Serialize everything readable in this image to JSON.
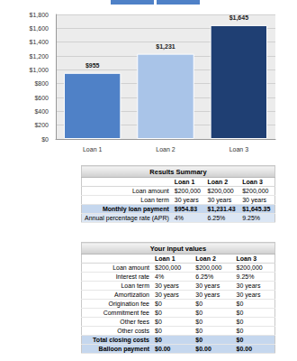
{
  "chart_data": {
    "type": "bar",
    "categories": [
      "Loan 1",
      "Loan 2",
      "Loan 3"
    ],
    "values": [
      955,
      1231,
      1645
    ],
    "value_labels": [
      "$955",
      "$1,231",
      "$1,645"
    ],
    "colors": [
      "#4f81c7",
      "#a9c4e8",
      "#1f3f73"
    ],
    "ylim": [
      0,
      1800
    ],
    "yticks": [
      {
        "value": 0,
        "label": "$0"
      },
      {
        "value": 200,
        "label": "$200"
      },
      {
        "value": 400,
        "label": "$400"
      },
      {
        "value": 600,
        "label": "$600"
      },
      {
        "value": 800,
        "label": "$800"
      },
      {
        "value": 1000,
        "label": "$1,000"
      },
      {
        "value": 1200,
        "label": "$1,200"
      },
      {
        "value": 1400,
        "label": "$1,400"
      },
      {
        "value": 1600,
        "label": "$1,600"
      },
      {
        "value": 1800,
        "label": "$1,800"
      }
    ],
    "grid": true,
    "data_labels": true
  },
  "tables": [
    {
      "title": "Results Summary",
      "header": [
        "Loan 1",
        "Loan 2",
        "Loan 3"
      ],
      "rows": [
        [
          "Loan amount",
          "$200,000",
          "$200,000",
          "$200,000"
        ],
        [
          "Loan term",
          "30 years",
          "30 years",
          "30 years"
        ],
        [
          "Monthly loan payment",
          "$954.83",
          "$1,231.43",
          "$1,645.35"
        ],
        [
          "Annual percentage rate (APR)",
          "4%",
          "6.25%",
          "9.25%"
        ]
      ]
    },
    {
      "title": "Your input values",
      "header": [
        "Loan 1",
        "Loan 2",
        "Loan 3"
      ],
      "rows": [
        [
          "Loan amount",
          "$200,000",
          "$200,000",
          "$200,000"
        ],
        [
          "Interest rate",
          "4%",
          "6.25%",
          "9.25%"
        ],
        [
          "Loan term",
          "30 years",
          "30 years",
          "30 years"
        ],
        [
          "Amortization",
          "30 years",
          "30 years",
          "30 years"
        ],
        [
          "Origination fee",
          "$0",
          "$0",
          "$0"
        ],
        [
          "Commitment fee",
          "$0",
          "$0",
          "$0"
        ],
        [
          "Other fees",
          "$0",
          "$0",
          "$0"
        ],
        [
          "Other costs",
          "$0",
          "$0",
          "$0"
        ],
        [
          "Total closing costs",
          "$0",
          "$0",
          "$0"
        ],
        [
          "Balloon payment",
          "$0.00",
          "$0.00",
          "$0.00"
        ]
      ]
    }
  ]
}
